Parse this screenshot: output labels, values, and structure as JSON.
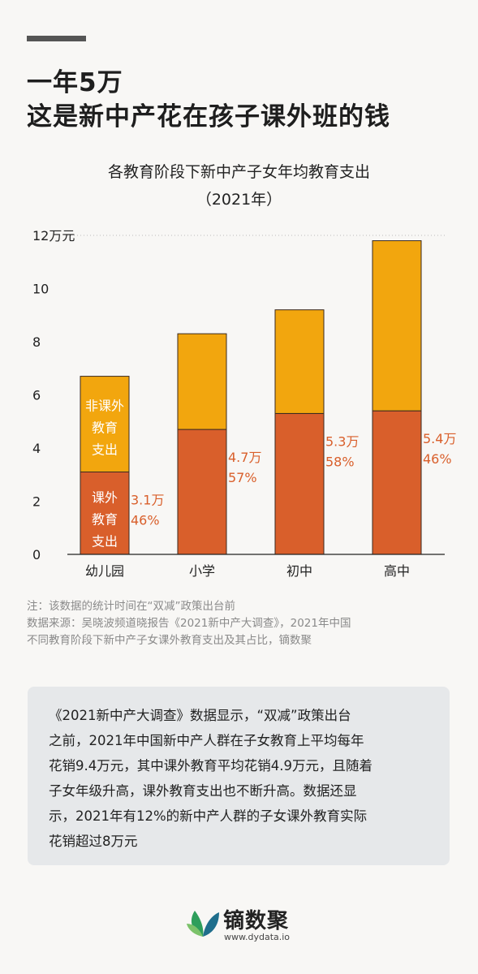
{
  "headline": {
    "line1": "一年5万",
    "line2": "这是新中产花在孩子课外班的钱"
  },
  "chart_data": {
    "type": "bar",
    "stacked": true,
    "title": "各教育阶段下新中产子女年均教育支出",
    "subtitle": "（2021年）",
    "y_unit_label": "12万元",
    "ylim": [
      0,
      12
    ],
    "yticks": [
      0,
      2,
      4,
      6,
      8,
      10,
      12
    ],
    "categories": [
      "幼儿园",
      "小学",
      "初中",
      "高中"
    ],
    "series": [
      {
        "name": "课外教育支出",
        "color": "#d95f2b",
        "values": [
          3.1,
          4.7,
          5.3,
          5.4
        ]
      },
      {
        "name": "非课外教育支出",
        "color": "#f2a60e",
        "values": [
          3.6,
          3.6,
          3.9,
          6.4
        ]
      }
    ],
    "data_labels": [
      {
        "amount": "3.1万",
        "percent": "46%"
      },
      {
        "amount": "4.7万",
        "percent": "57%"
      },
      {
        "amount": "5.3万",
        "percent": "58%"
      },
      {
        "amount": "5.4万",
        "percent": "46%"
      }
    ],
    "inbar_labels": {
      "top": [
        "非课外",
        "教育",
        "支出"
      ],
      "bottom": [
        "课外",
        "教育",
        "支出"
      ]
    },
    "label_color": "#d95f2b",
    "grid": false,
    "legend": "none"
  },
  "notes": {
    "line1": "注：该数据的统计时间在“双减”政策出台前",
    "line2": "数据来源：吴晓波频道晓报告《2021新中产大调查》，2021年中国",
    "line3": "不同教育阶段下新中产子女课外教育支出及其占比，镝数聚"
  },
  "summary": {
    "lines": [
      "《2021新中产大调查》数据显示，“双减”政策出台",
      "之前，2021年中国新中产人群在子女教育上平均每年",
      "花销9.4万元，其中课外教育平均花销4.9万元，且随着",
      "子女年级升高，课外教育支出也不断升高。数据还显",
      "示，2021年有12%的新中产人群的子女课外教育实际",
      "花销超过8万元"
    ]
  },
  "brand": {
    "name": "镝数聚",
    "url": "www.dydata.io",
    "logo_icon": "leaf-logo-icon"
  }
}
